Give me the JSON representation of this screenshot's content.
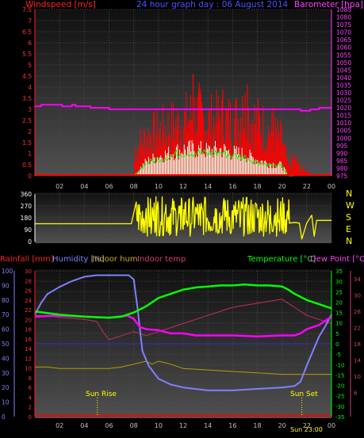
{
  "header": {
    "left_label": "Windspeed [m/s]",
    "center_label": "24 hour graph day : 06 August 2014",
    "right_label": "Barometer [hpa]"
  },
  "colors": {
    "background": "#000000",
    "gust": "#ff0000",
    "average_wind": "#e8ffe8",
    "wind_avg_line": "#00ff00",
    "barometer": "#ff00ff",
    "direction": "#ffff00",
    "humidity": "#8080ff",
    "indoor_humidity": "#b0a000",
    "indoor_temp": "#c03060",
    "temperature": "#00ff00",
    "dew_point": "#ff00ff",
    "rainfall": "#ff0000",
    "sun_event": "#ffff00"
  },
  "x_tick_labels": [
    "02",
    "04",
    "06",
    "08",
    "10",
    "12",
    "14",
    "16",
    "18",
    "20",
    "22",
    "00"
  ],
  "chart_data": [
    {
      "type": "bar",
      "name": "wind",
      "x_range_hours": [
        0,
        24
      ],
      "left_axis_label": "Windspeed [m/s]",
      "right_axis_label": "Barometer [hpa]",
      "ylim": [
        0,
        7.5
      ],
      "y_ticks": [
        "0",
        "0.5",
        "1",
        "1.5",
        "2",
        "2.5",
        "3",
        "3.5",
        "4",
        "4.5",
        "5",
        "5.5",
        "6",
        "6.5",
        "7",
        "7.5"
      ],
      "y2lim": [
        975,
        1085
      ],
      "y2_ticks": [
        "975",
        "980",
        "985",
        "990",
        "995",
        "1000",
        "1005",
        "1010",
        "1015",
        "1020",
        "1025",
        "1030",
        "1035",
        "1040",
        "1045",
        "1050",
        "1055",
        "1060",
        "1065",
        "1070",
        "1075",
        "1080",
        "1085"
      ],
      "gust_envelope": [
        [
          0,
          0
        ],
        [
          8,
          0
        ],
        [
          8.1,
          1.5
        ],
        [
          9,
          2.2
        ],
        [
          10,
          2.5
        ],
        [
          11,
          2.8
        ],
        [
          12,
          3.0
        ],
        [
          13,
          3.5
        ],
        [
          14,
          3.0
        ],
        [
          15,
          3.2
        ],
        [
          16,
          3.0
        ],
        [
          17,
          3.5
        ],
        [
          18,
          3.0
        ],
        [
          19,
          2.5
        ],
        [
          20,
          2.0
        ],
        [
          20.5,
          0.5
        ],
        [
          21,
          1.0
        ],
        [
          21.5,
          0.4
        ],
        [
          22,
          0.3
        ],
        [
          22.5,
          0
        ],
        [
          24,
          0
        ]
      ],
      "gust_peaks": [
        [
          12.8,
          4.6
        ],
        [
          13.3,
          4.2
        ],
        [
          15.2,
          3.9
        ],
        [
          16.8,
          3.6
        ],
        [
          17.2,
          4.1
        ],
        [
          19.3,
          3.1
        ]
      ],
      "average_envelope": [
        [
          0,
          0
        ],
        [
          8,
          0
        ],
        [
          8.5,
          0.4
        ],
        [
          9,
          0.8
        ],
        [
          10,
          1.1
        ],
        [
          11,
          1.3
        ],
        [
          12,
          1.5
        ],
        [
          13,
          1.5
        ],
        [
          14,
          1.4
        ],
        [
          15,
          1.5
        ],
        [
          16,
          1.3
        ],
        [
          17,
          1.2
        ],
        [
          18,
          0.9
        ],
        [
          19,
          0.7
        ],
        [
          20,
          0.6
        ],
        [
          20.5,
          0
        ],
        [
          24,
          0
        ]
      ],
      "barometer": [
        [
          0,
          1021
        ],
        [
          0.5,
          1021
        ],
        [
          0.5,
          1022
        ],
        [
          2.2,
          1022
        ],
        [
          2.2,
          1021
        ],
        [
          3,
          1021
        ],
        [
          3,
          1022
        ],
        [
          3.3,
          1022
        ],
        [
          3.3,
          1021
        ],
        [
          4.5,
          1021
        ],
        [
          4.5,
          1020
        ],
        [
          6,
          1020
        ],
        [
          6,
          1019
        ],
        [
          21.5,
          1019
        ],
        [
          21.5,
          1018
        ],
        [
          22.3,
          1018
        ],
        [
          22.3,
          1019
        ],
        [
          23,
          1019
        ],
        [
          23,
          1020
        ],
        [
          24,
          1020
        ]
      ]
    },
    {
      "type": "line",
      "name": "wind direction",
      "x_range_hours": [
        0,
        24
      ],
      "ylim": [
        0,
        360
      ],
      "y_ticks": [
        "0",
        "90",
        "180",
        "270",
        "360"
      ],
      "compass_labels": [
        "N",
        "W",
        "S",
        "E",
        "N"
      ],
      "direction_calm_level": 135,
      "direction": [
        [
          0,
          135
        ],
        [
          7.8,
          135
        ],
        [
          8.2,
          300
        ],
        [
          8.6,
          80
        ],
        [
          9,
          250
        ],
        [
          9.4,
          60
        ],
        [
          9.8,
          340
        ],
        [
          10.2,
          150
        ],
        [
          10.6,
          280
        ],
        [
          11,
          60
        ],
        [
          11.4,
          230
        ],
        [
          11.8,
          90
        ],
        [
          12.2,
          300
        ],
        [
          12.6,
          70
        ],
        [
          13,
          260
        ],
        [
          13.4,
          120
        ],
        [
          13.8,
          330
        ],
        [
          14.2,
          80
        ],
        [
          14.6,
          250
        ],
        [
          15,
          100
        ],
        [
          15.4,
          310
        ],
        [
          15.8,
          70
        ],
        [
          16.2,
          200
        ],
        [
          16.6,
          110
        ],
        [
          17,
          280
        ],
        [
          17.4,
          60
        ],
        [
          17.8,
          240
        ],
        [
          18.2,
          90
        ],
        [
          18.6,
          170
        ],
        [
          19,
          60
        ],
        [
          19.4,
          200
        ],
        [
          19.8,
          80
        ],
        [
          20.2,
          130
        ],
        [
          20.6,
          140
        ],
        [
          21,
          145
        ],
        [
          21.4,
          140
        ],
        [
          21.6,
          20
        ],
        [
          22,
          140
        ],
        [
          22.4,
          200
        ],
        [
          22.6,
          40
        ],
        [
          22.8,
          160
        ],
        [
          23.2,
          160
        ],
        [
          24,
          160
        ]
      ]
    },
    {
      "type": "line",
      "name": "temperature and humidity",
      "x_range_hours": [
        0,
        24
      ],
      "axis_labels": {
        "rainfall": "Rainfall [mm]",
        "humidity": "Humidity [%]",
        "indoor_humidity": "Indoor hum",
        "indoor_temp": "Indoor temp",
        "temperature": "Temperature [°C]",
        "dew_point": "Dew Point [°C]"
      },
      "humidity_ylim": [
        0,
        100
      ],
      "humidity_ticks": [
        "0",
        "10",
        "20",
        "30",
        "40",
        "50",
        "60",
        "70",
        "80",
        "90",
        "100"
      ],
      "rain_ylim": [
        0,
        30
      ],
      "rain_ticks": [
        "0",
        "2",
        "4",
        "6",
        "8",
        "10",
        "12",
        "14",
        "16",
        "18",
        "20",
        "22",
        "24",
        "26",
        "28",
        "30"
      ],
      "temp_ylim": [
        -35,
        35
      ],
      "temp_ticks": [
        "-35",
        "-30",
        "-25",
        "-20",
        "-15",
        "-10",
        "-5",
        "0",
        "5",
        "10",
        "15",
        "20",
        "25",
        "30",
        "35"
      ],
      "indoor_ylim": [
        0,
        36
      ],
      "indoor_ticks": [
        "6",
        "10",
        "14",
        "18",
        "22",
        "26",
        "30",
        "34"
      ],
      "humidity": [
        [
          0,
          70
        ],
        [
          0.5,
          78
        ],
        [
          1,
          84
        ],
        [
          2,
          89
        ],
        [
          3,
          93
        ],
        [
          4,
          96
        ],
        [
          5,
          97
        ],
        [
          7.6,
          97
        ],
        [
          8,
          94
        ],
        [
          8.3,
          75
        ],
        [
          8.7,
          45
        ],
        [
          9.2,
          35
        ],
        [
          10,
          26
        ],
        [
          11,
          22
        ],
        [
          12,
          20
        ],
        [
          14,
          18
        ],
        [
          16,
          18
        ],
        [
          18,
          19
        ],
        [
          20,
          20
        ],
        [
          21,
          21
        ],
        [
          21.5,
          24
        ],
        [
          22,
          35
        ],
        [
          22.5,
          45
        ],
        [
          23,
          55
        ],
        [
          23.5,
          62
        ],
        [
          24,
          70
        ]
      ],
      "indoor_humidity": [
        [
          0,
          34
        ],
        [
          1,
          34
        ],
        [
          2,
          33
        ],
        [
          4,
          33
        ],
        [
          6,
          33
        ],
        [
          7,
          34
        ],
        [
          8,
          36
        ],
        [
          8.5,
          37
        ],
        [
          9,
          38
        ],
        [
          9.5,
          36
        ],
        [
          10,
          38
        ],
        [
          10.5,
          37
        ],
        [
          11,
          36
        ],
        [
          12,
          33
        ],
        [
          14,
          32
        ],
        [
          16,
          31
        ],
        [
          18,
          30
        ],
        [
          20,
          29
        ],
        [
          22,
          29
        ],
        [
          24,
          29
        ]
      ],
      "temperature": [
        [
          0,
          15.5
        ],
        [
          2,
          14
        ],
        [
          4,
          13
        ],
        [
          6,
          12.5
        ],
        [
          7,
          13
        ],
        [
          8,
          15
        ],
        [
          9,
          18
        ],
        [
          10,
          22
        ],
        [
          11,
          24
        ],
        [
          12,
          26
        ],
        [
          13,
          27
        ],
        [
          14,
          27.5
        ],
        [
          15,
          28
        ],
        [
          16,
          28
        ],
        [
          17,
          28.5
        ],
        [
          18,
          28
        ],
        [
          19,
          28
        ],
        [
          20,
          27.5
        ],
        [
          20.5,
          26
        ],
        [
          21,
          24
        ],
        [
          22,
          21
        ],
        [
          23,
          19
        ],
        [
          24,
          17
        ]
      ],
      "dew_point": [
        [
          0,
          13
        ],
        [
          2,
          13.5
        ],
        [
          4,
          13
        ],
        [
          6,
          12.5
        ],
        [
          7.5,
          13.5
        ],
        [
          8,
          12
        ],
        [
          8.5,
          8
        ],
        [
          9,
          7
        ],
        [
          10,
          6.5
        ],
        [
          11,
          5
        ],
        [
          12,
          5
        ],
        [
          13,
          4
        ],
        [
          14,
          4
        ],
        [
          16,
          4
        ],
        [
          18,
          3.5
        ],
        [
          20,
          4
        ],
        [
          21,
          4
        ],
        [
          21.5,
          5
        ],
        [
          22,
          7
        ],
        [
          23,
          9
        ],
        [
          24,
          13
        ]
      ],
      "indoor_temp": [
        [
          0,
          25
        ],
        [
          1,
          25
        ],
        [
          2,
          24.5
        ],
        [
          4,
          24
        ],
        [
          5,
          23.5
        ],
        [
          5.5,
          21
        ],
        [
          6,
          19
        ],
        [
          7,
          20
        ],
        [
          8,
          21
        ],
        [
          9,
          20
        ],
        [
          10,
          21
        ],
        [
          11,
          22
        ],
        [
          12,
          23
        ],
        [
          13,
          24
        ],
        [
          14,
          25
        ],
        [
          15,
          26
        ],
        [
          16,
          27
        ],
        [
          17,
          27.5
        ],
        [
          18,
          28
        ],
        [
          19,
          28.5
        ],
        [
          20,
          29
        ],
        [
          20.5,
          28
        ],
        [
          21,
          27
        ],
        [
          22,
          25
        ],
        [
          23,
          24
        ],
        [
          24,
          23
        ]
      ],
      "rainfall_total": 0,
      "sun_rise_label": "Sun Rise",
      "sun_rise_hour": 5.05,
      "sun_set_label": "Sun Set",
      "sun_set_hour": 21.6,
      "marker_label": "Sun 23:00"
    }
  ]
}
